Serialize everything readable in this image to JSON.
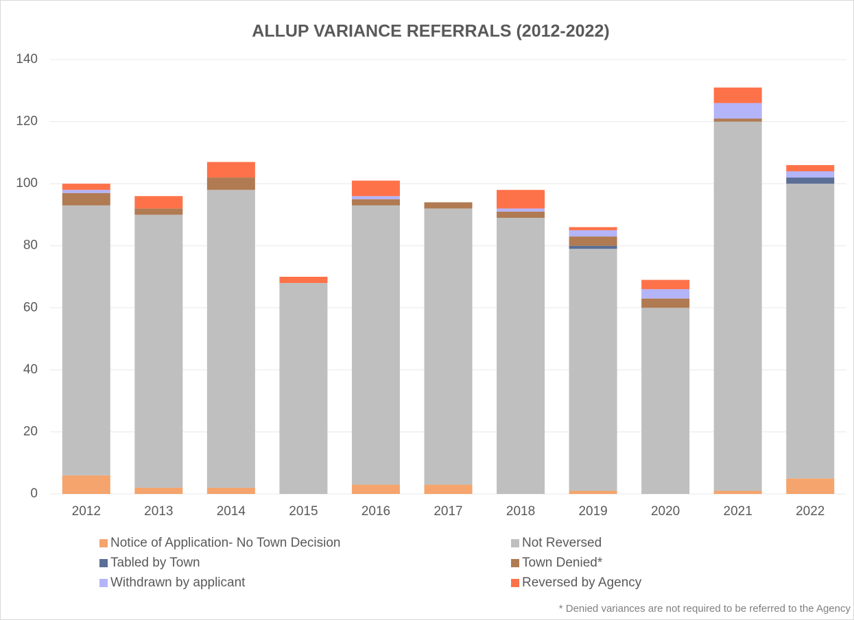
{
  "chart_data": {
    "type": "stacked_bar",
    "title": "ALLUP VARIANCE REFERRALS (2012-2022)",
    "note": "* Denied variances are not required to be referred to the Agency",
    "categories": [
      "2012",
      "2013",
      "2014",
      "2015",
      "2016",
      "2017",
      "2018",
      "2019",
      "2020",
      "2021",
      "2022"
    ],
    "series": [
      {
        "name": "Notice of Application- No Town Decision",
        "color": "#f4a46c",
        "values": [
          6,
          2,
          2,
          0,
          3,
          3,
          0,
          1,
          0,
          1,
          5
        ]
      },
      {
        "name": "Not Reversed",
        "color": "#bfbfbf",
        "values": [
          87,
          88,
          96,
          68,
          90,
          89,
          89,
          78,
          60,
          119,
          95
        ]
      },
      {
        "name": "Tabled by Town",
        "color": "#5b6e95",
        "values": [
          0,
          0,
          0,
          0,
          0,
          0,
          0,
          1,
          0,
          0,
          2
        ]
      },
      {
        "name": "Town Denied*",
        "color": "#b07a52",
        "values": [
          4,
          2,
          4,
          0,
          2,
          2,
          2,
          3,
          3,
          1,
          0
        ]
      },
      {
        "name": "Withdrawn by applicant",
        "color": "#b4b4f8",
        "values": [
          1,
          0,
          0,
          0,
          1,
          0,
          1,
          2,
          3,
          5,
          2
        ]
      },
      {
        "name": "Reversed by Agency",
        "color": "#fe7249",
        "values": [
          2,
          4,
          5,
          2,
          5,
          0,
          6,
          1,
          3,
          5,
          2
        ]
      }
    ],
    "ylim": [
      0,
      140
    ],
    "yticks": [
      0,
      20,
      40,
      60,
      80,
      100,
      120,
      140
    ],
    "grid": true,
    "legend": "bottom"
  }
}
